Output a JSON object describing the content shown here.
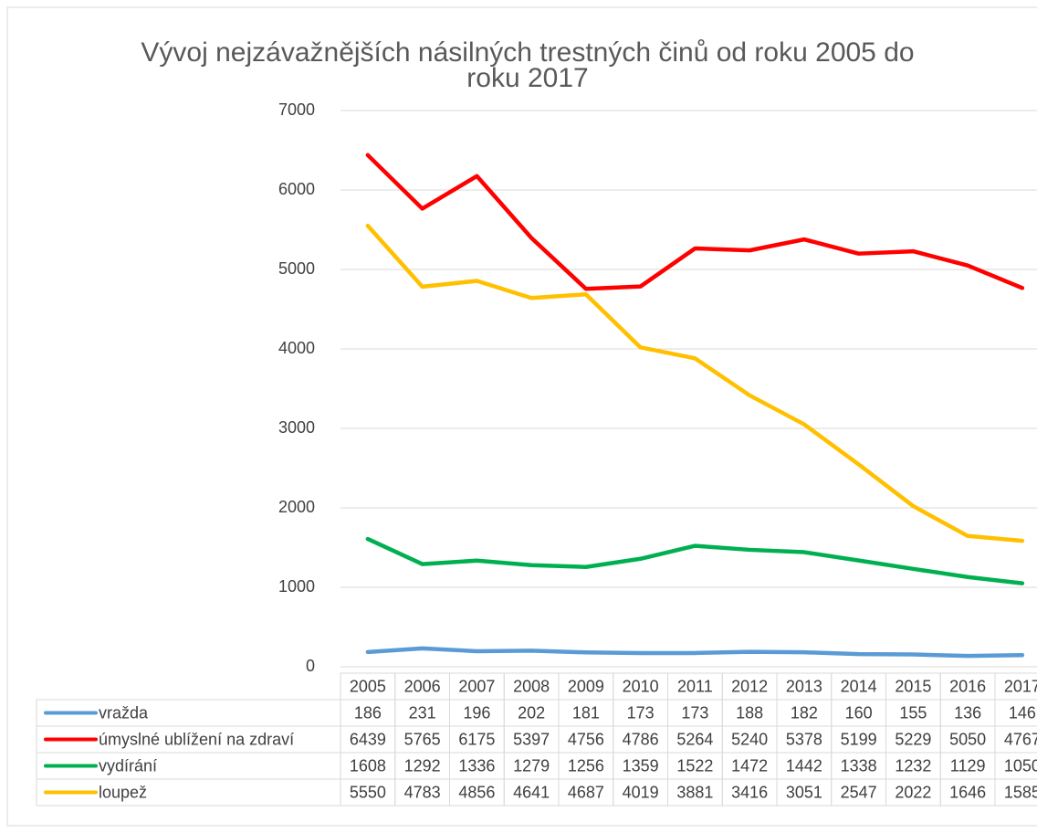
{
  "chart_data": {
    "type": "line",
    "title": "Vývoj nejzávažnějších násilných trestných činů od roku 2005 do roku 2017",
    "categories": [
      "2005",
      "2006",
      "2007",
      "2008",
      "2009",
      "2010",
      "2011",
      "2012",
      "2013",
      "2014",
      "2015",
      "2016",
      "2017"
    ],
    "series": [
      {
        "name": "vražda",
        "color": "#5b9bd5",
        "values": [
          186,
          231,
          196,
          202,
          181,
          173,
          173,
          188,
          182,
          160,
          155,
          136,
          146
        ]
      },
      {
        "name": "úmyslné ublížení na zdraví",
        "color": "#ff0000",
        "values": [
          6439,
          5765,
          6175,
          5397,
          4756,
          4786,
          5264,
          5240,
          5378,
          5199,
          5229,
          5050,
          4767
        ]
      },
      {
        "name": "vydírání",
        "color": "#00b050",
        "values": [
          1608,
          1292,
          1336,
          1279,
          1256,
          1359,
          1522,
          1472,
          1442,
          1338,
          1232,
          1129,
          1050
        ]
      },
      {
        "name": "loupež",
        "color": "#ffc000",
        "values": [
          5550,
          4783,
          4856,
          4641,
          4687,
          4019,
          3881,
          3416,
          3051,
          2547,
          2022,
          1646,
          1585
        ]
      }
    ],
    "ylim": [
      0,
      7000
    ],
    "yticks": [
      0,
      1000,
      2000,
      3000,
      4000,
      5000,
      6000,
      7000
    ],
    "grid": true,
    "data_table": true
  }
}
